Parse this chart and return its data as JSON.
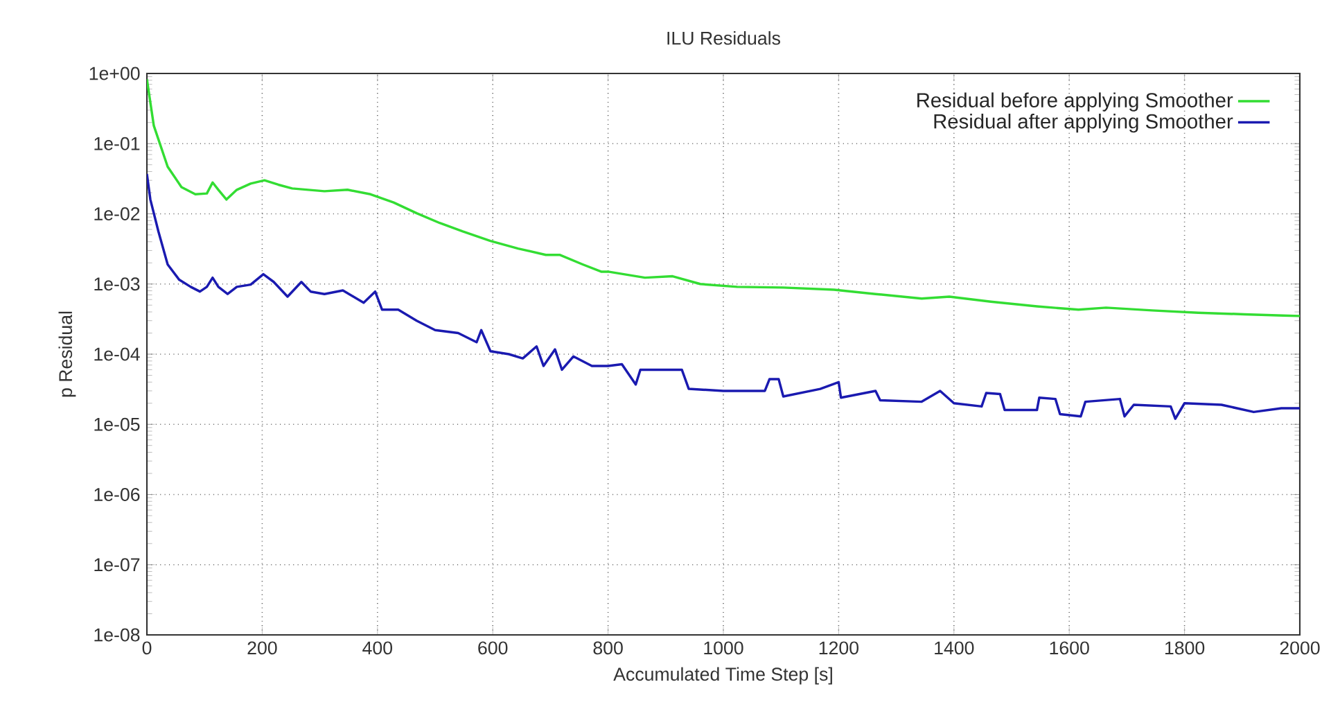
{
  "chart_data": {
    "type": "line",
    "title": "ILU Residuals",
    "xlabel": "Accumulated Time Step  [s]",
    "ylabel": "p Residual",
    "log": true,
    "grid": true,
    "legend": "top right",
    "marker": "none",
    "line_style": "solid",
    "xlim": [
      0,
      2000
    ],
    "xticks": [
      0,
      200,
      400,
      600,
      800,
      1000,
      1200,
      1400,
      1600,
      1800,
      2000
    ],
    "ylim": [
      1e-08,
      1
    ],
    "yticks": [
      {
        "value": 1e-08,
        "label": "1e-08"
      },
      {
        "value": 1e-07,
        "label": "1e-07"
      },
      {
        "value": 1e-06,
        "label": "1e-06"
      },
      {
        "value": 1e-05,
        "label": "1e-05"
      },
      {
        "value": 0.0001,
        "label": "1e-04"
      },
      {
        "value": 0.001,
        "label": "1e-03"
      },
      {
        "value": 0.01,
        "label": "1e-02"
      },
      {
        "value": 0.1,
        "label": "1e-01"
      },
      {
        "value": 1,
        "label": "1e+00"
      }
    ],
    "series": [
      {
        "name": "Residual before applying Smoother",
        "color": "#33dd33",
        "x": [
          0,
          12,
          36,
          60,
          84,
          104,
          114,
          124,
          138,
          156,
          180,
          204,
          228,
          252,
          308,
          348,
          388,
          428,
          468,
          508,
          548,
          596,
          644,
          692,
          716,
          756,
          788,
          800,
          864,
          912,
          960,
          1024,
          1104,
          1192,
          1264,
          1344,
          1392,
          1464,
          1544,
          1616,
          1664,
          1744,
          1824,
          1904,
          2000
        ],
        "values": [
          0.83,
          0.18,
          0.047,
          0.024,
          0.019,
          0.0195,
          0.028,
          0.022,
          0.016,
          0.022,
          0.027,
          0.03,
          0.026,
          0.023,
          0.021,
          0.022,
          0.019,
          0.0145,
          0.0102,
          0.0074,
          0.0056,
          0.0041,
          0.0032,
          0.0026,
          0.0026,
          0.0019,
          0.0015,
          0.0015,
          0.00123,
          0.00129,
          0.001,
          0.00091,
          0.00089,
          0.00083,
          0.00072,
          0.00062,
          0.00066,
          0.00056,
          0.00048,
          0.00043,
          0.00046,
          0.00042,
          0.00039,
          0.00037,
          0.00035
        ]
      },
      {
        "name": "Residual after applying Smoother",
        "color": "#1a1ab0",
        "x": [
          0,
          6,
          20,
          36,
          56,
          76,
          92,
          104,
          114,
          124,
          140,
          156,
          180,
          202,
          220,
          244,
          268,
          284,
          308,
          340,
          376,
          396,
          408,
          436,
          468,
          500,
          540,
          572,
          580,
          596,
          628,
          652,
          676,
          688,
          708,
          720,
          740,
          772,
          800,
          824,
          848,
          856,
          928,
          940,
          1000,
          1072,
          1080,
          1096,
          1104,
          1168,
          1200,
          1204,
          1264,
          1272,
          1344,
          1376,
          1400,
          1448,
          1456,
          1480,
          1488,
          1544,
          1548,
          1576,
          1584,
          1620,
          1628,
          1688,
          1696,
          1712,
          1776,
          1784,
          1800,
          1864,
          1920,
          1968,
          2000
        ],
        "values": [
          0.037,
          0.016,
          0.0056,
          0.0019,
          0.00115,
          0.00091,
          0.00078,
          0.00091,
          0.00123,
          0.00091,
          0.00072,
          0.00091,
          0.00098,
          0.00138,
          0.00107,
          0.00066,
          0.00107,
          0.00078,
          0.00072,
          0.00081,
          0.00054,
          0.00078,
          0.00043,
          0.00043,
          0.0003,
          0.00022,
          0.0002,
          0.000148,
          0.00022,
          0.00011,
          0.0001,
          8.7e-05,
          0.000129,
          6.8e-05,
          0.000117,
          6e-05,
          9.3e-05,
          6.8e-05,
          6.8e-05,
          7.2e-05,
          3.7e-05,
          6e-05,
          6e-05,
          3.2e-05,
          3e-05,
          3e-05,
          4.4e-05,
          4.4e-05,
          2.5e-05,
          3.2e-05,
          4e-05,
          2.4e-05,
          3e-05,
          2.2e-05,
          2.1e-05,
          3e-05,
          2e-05,
          1.8e-05,
          2.8e-05,
          2.7e-05,
          1.6e-05,
          1.6e-05,
          2.4e-05,
          2.3e-05,
          1.4e-05,
          1.3e-05,
          2.1e-05,
          2.3e-05,
          1.3e-05,
          1.9e-05,
          1.8e-05,
          1.2e-05,
          2e-05,
          1.9e-05,
          1.5e-05,
          1.7e-05,
          1.7e-05
        ]
      }
    ]
  }
}
